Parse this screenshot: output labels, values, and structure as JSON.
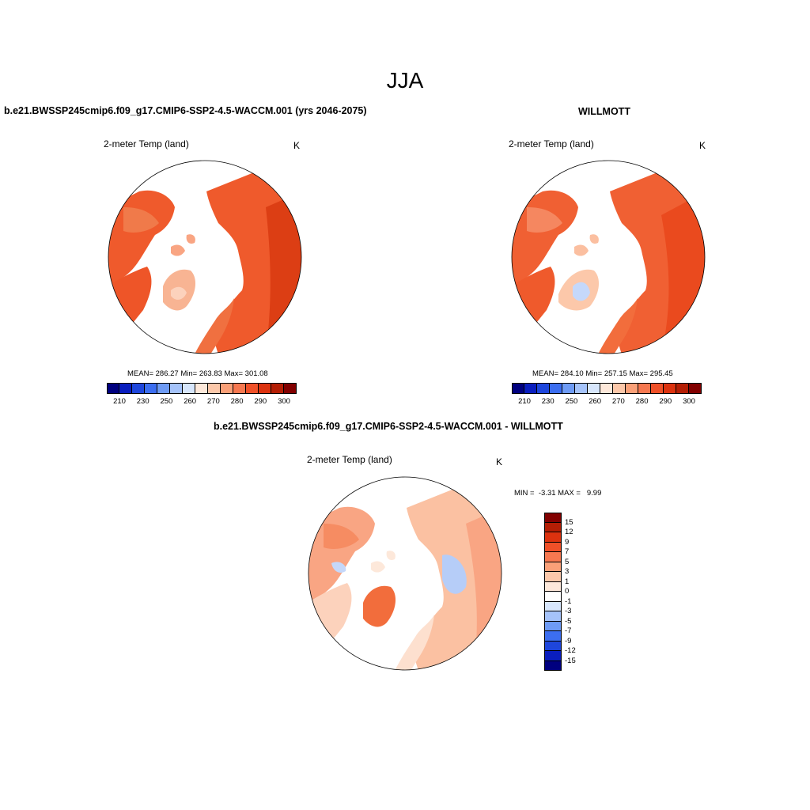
{
  "season": "JJA",
  "left_panel": {
    "title": "b.e21.BWSSP245cmip6.f09_g17.CMIP6-SSP2-4.5-WACCM.001 (yrs 2046-2075)",
    "subtitle": "2-meter Temp (land)",
    "units": "K",
    "stats": "MEAN= 286.27  Min= 263.83  Max= 301.08"
  },
  "right_panel": {
    "title": "WILLMOTT",
    "subtitle": "2-meter Temp (land)",
    "units": "K",
    "stats": "MEAN= 284.10  Min= 257.15  Max= 295.45"
  },
  "diff_panel": {
    "title": "b.e21.BWSSP245cmip6.f09_g17.CMIP6-SSP2-4.5-WACCM.001 - WILLMOTT",
    "subtitle": "2-meter Temp (land)",
    "units": "K",
    "stats": "MIN =  -3.31 MAX =   9.99"
  },
  "abs_colorbar": {
    "colors": [
      "#00007f",
      "#0a1ebf",
      "#1e46dc",
      "#3c6ef0",
      "#6e9bf5",
      "#a5c3fa",
      "#d7e6fc",
      "#fde8da",
      "#fcc8aa",
      "#faa078",
      "#f67850",
      "#ef5028",
      "#dc320f",
      "#b41e05",
      "#820000"
    ],
    "labels": [
      "210",
      "230",
      "250",
      "260",
      "270",
      "280",
      "290",
      "300"
    ]
  },
  "diff_colorbar": {
    "colors": [
      "#820000",
      "#b41e05",
      "#dc320f",
      "#ef5028",
      "#f67850",
      "#faa078",
      "#fcc8aa",
      "#fde8da",
      "#ffffff",
      "#d7e6fc",
      "#a5c3fa",
      "#6e9bf5",
      "#3c6ef0",
      "#1e46dc",
      "#0a1ebf",
      "#00007f"
    ],
    "labels": [
      "15",
      "12",
      "9",
      "7",
      "5",
      "3",
      "1",
      "0",
      "-1",
      "-3",
      "-5",
      "-7",
      "-9",
      "-12",
      "-15"
    ]
  }
}
